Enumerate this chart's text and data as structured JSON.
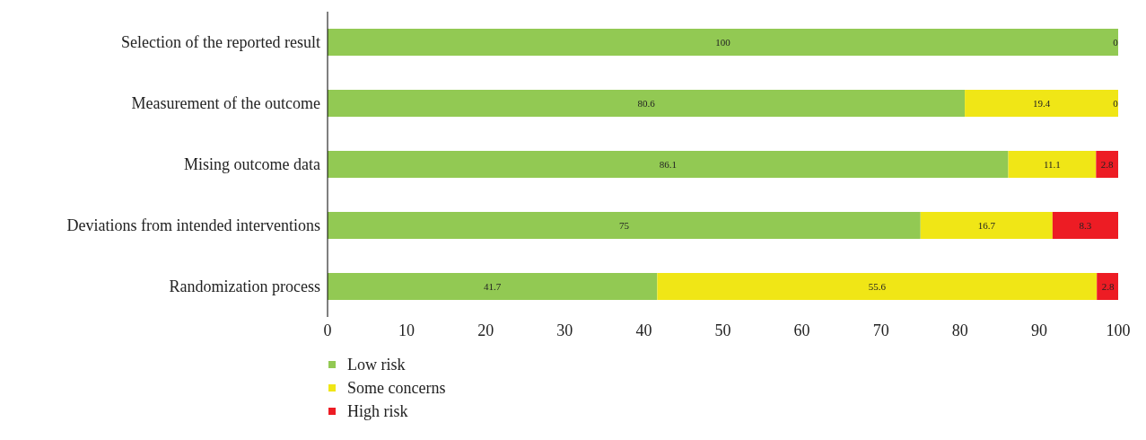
{
  "chart_data": {
    "type": "bar",
    "orientation": "horizontal",
    "stacked": true,
    "categories": [
      "Selection of the reported result",
      "Measurement of the outcome",
      "Mising outcome data",
      "Deviations from intended interventions",
      "Randomization process"
    ],
    "series": [
      {
        "name": "Low risk",
        "color": "#92c953",
        "values": [
          100,
          80.6,
          86.1,
          75,
          41.7
        ],
        "value_labels": [
          "100",
          "80.6",
          "86.1",
          "75",
          "41.7"
        ]
      },
      {
        "name": "Some concerns",
        "color": "#f0e616",
        "values": [
          0,
          19.4,
          11.1,
          16.7,
          55.6
        ],
        "value_labels": [
          null,
          "19.4",
          "11.1",
          "16.7",
          "55.6"
        ]
      },
      {
        "name": "High risk",
        "color": "#ed1c24",
        "values": [
          0,
          0,
          2.8,
          8.3,
          2.8
        ],
        "value_labels": [
          "0",
          "0",
          "2.8",
          "8.3",
          "2.8"
        ]
      }
    ],
    "xlim": [
      0,
      100
    ],
    "xticks": [
      0,
      10,
      20,
      30,
      40,
      50,
      60,
      70,
      80,
      90,
      100
    ],
    "grid": false,
    "legend": "bottom left",
    "marker": "square"
  }
}
